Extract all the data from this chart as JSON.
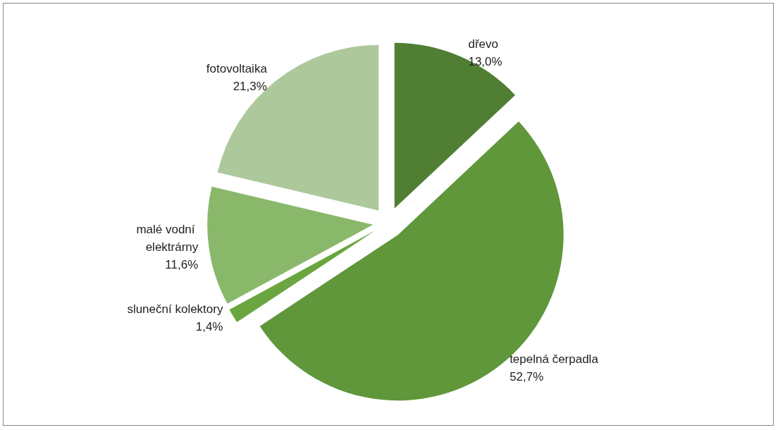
{
  "chart_data": {
    "type": "pie",
    "categories": [
      "dřevo",
      "tepelná čerpadla",
      "sluneční kolektory",
      "malé vodní elektrárny",
      "fotovoltaika"
    ],
    "values": [
      13.0,
      52.7,
      1.4,
      11.6,
      21.3
    ],
    "value_labels": [
      "13,0%",
      "52,7%",
      "1,4%",
      "11,6%",
      "21,3%"
    ],
    "colors": [
      "#507f34",
      "#5f973a",
      "#6aa53f",
      "#8ab86b",
      "#adc99c"
    ]
  }
}
